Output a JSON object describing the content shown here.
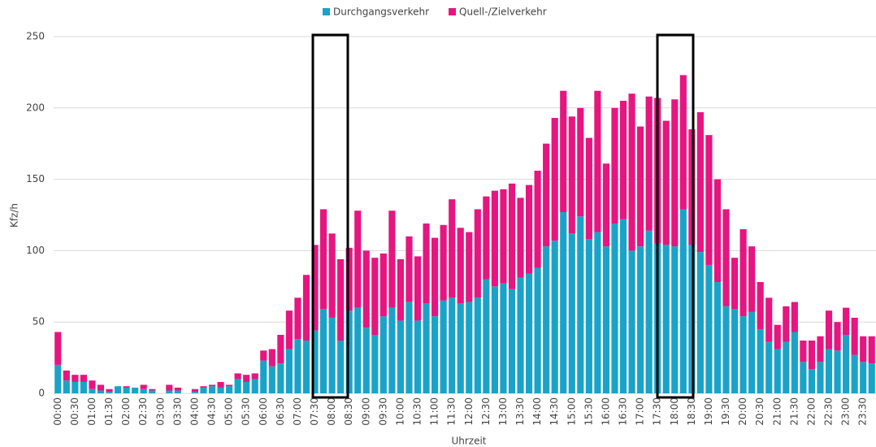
{
  "chart_data": {
    "type": "stacked-bar",
    "y_label": "Kfz/h",
    "x_label": "Uhrzeit",
    "categories": [
      "00:00",
      null,
      "00:30",
      null,
      "01:00",
      null,
      "01:30",
      null,
      "02:00",
      null,
      "02:30",
      null,
      "03:00",
      null,
      "03:30",
      null,
      "04:00",
      null,
      "04:30",
      null,
      "05:00",
      null,
      "05:30",
      null,
      "06:00",
      null,
      "06:30",
      null,
      "07:00",
      null,
      "07:30",
      null,
      "08:00",
      null,
      "08:30",
      null,
      "09:00",
      null,
      "09:30",
      null,
      "10:00",
      null,
      "10:30",
      null,
      "11:00",
      null,
      "11:30",
      null,
      "12:00",
      null,
      "12:30",
      null,
      "13:00",
      null,
      "13:30",
      null,
      "14:00",
      null,
      "14:30",
      null,
      "15:00",
      null,
      "15:30",
      null,
      "16:00",
      null,
      "16:30",
      null,
      "17:00",
      null,
      "17:30",
      null,
      "18:00",
      null,
      "18:30",
      null,
      "19:00",
      null,
      "19:30",
      null,
      "20:00",
      null,
      "20:30",
      null,
      "21:00",
      null,
      "21:30",
      null,
      "22:00",
      null,
      "22:30",
      null,
      "23:00",
      null,
      "23:30",
      null
    ],
    "series": [
      {
        "name": "Durchgangsverkehr",
        "color": "#1aa3c8",
        "values": [
          20,
          9,
          8,
          8,
          3,
          2,
          1,
          5,
          4,
          4,
          3,
          2,
          0,
          2,
          2,
          0,
          1,
          4,
          5,
          4,
          5,
          10,
          8,
          10,
          23,
          19,
          21,
          31,
          38,
          37,
          44,
          59,
          53,
          37,
          58,
          60,
          46,
          41,
          54,
          60,
          51,
          64,
          51,
          63,
          54,
          65,
          67,
          63,
          64,
          67,
          80,
          75,
          77,
          73,
          81,
          84,
          88,
          103,
          107,
          127,
          112,
          124,
          108,
          113,
          103,
          119,
          122,
          100,
          103,
          114,
          105,
          104,
          103,
          129,
          104,
          99,
          90,
          78,
          61,
          59,
          54,
          57,
          45,
          36,
          31,
          36,
          43,
          22,
          17,
          22,
          31,
          30,
          41,
          27,
          22,
          21
        ]
      },
      {
        "name": "Quell-/Zielverkehr",
        "color": "#e6157f",
        "values": [
          23,
          7,
          5,
          5,
          6,
          4,
          2,
          0,
          1,
          0,
          3,
          1,
          0,
          4,
          2,
          0,
          2,
          1,
          1,
          4,
          1,
          4,
          5,
          4,
          7,
          12,
          20,
          27,
          29,
          46,
          60,
          70,
          59,
          57,
          44,
          68,
          54,
          54,
          44,
          68,
          43,
          46,
          45,
          56,
          55,
          53,
          69,
          53,
          49,
          62,
          58,
          67,
          66,
          74,
          56,
          62,
          68,
          72,
          86,
          85,
          82,
          76,
          71,
          99,
          58,
          81,
          83,
          110,
          84,
          94,
          102,
          87,
          103,
          94,
          81,
          98,
          91,
          72,
          68,
          36,
          61,
          46,
          33,
          31,
          17,
          25,
          21,
          15,
          20,
          18,
          27,
          20,
          19,
          26,
          18,
          19
        ]
      }
    ],
    "ylim": [
      0,
      250
    ],
    "yticks": [
      0,
      50,
      100,
      150,
      200,
      250
    ],
    "grid": true,
    "legend": "top"
  }
}
